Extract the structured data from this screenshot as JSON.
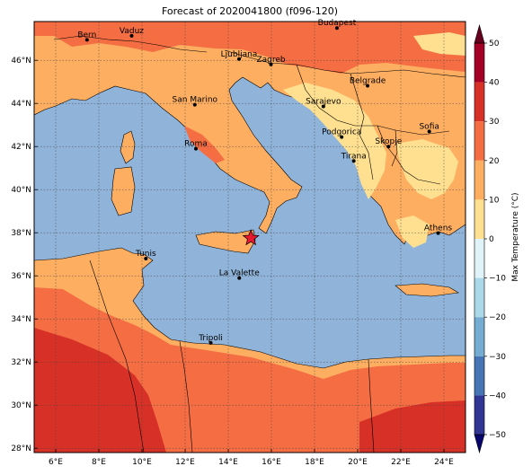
{
  "title": "Forecast of 2020041800 (f096-120)",
  "map": {
    "lon_range": [
      5,
      25
    ],
    "lat_range": [
      27.8,
      47.8
    ],
    "sea_color": "#8fb3d9",
    "land_color": "#fdae61",
    "warm_color": "#f46d43",
    "hot_color": "#d73027",
    "cool_color": "#fee090",
    "grid": true
  },
  "x_ticks": [
    {
      "lon": 6,
      "label": "6°E"
    },
    {
      "lon": 8,
      "label": "8°E"
    },
    {
      "lon": 10,
      "label": "10°E"
    },
    {
      "lon": 12,
      "label": "12°E"
    },
    {
      "lon": 14,
      "label": "14°E"
    },
    {
      "lon": 16,
      "label": "16°E"
    },
    {
      "lon": 18,
      "label": "18°E"
    },
    {
      "lon": 20,
      "label": "20°E"
    },
    {
      "lon": 22,
      "label": "22°E"
    },
    {
      "lon": 24,
      "label": "24°E"
    }
  ],
  "y_ticks": [
    {
      "lat": 28,
      "label": "28°N"
    },
    {
      "lat": 30,
      "label": "30°N"
    },
    {
      "lat": 32,
      "label": "32°N"
    },
    {
      "lat": 34,
      "label": "34°N"
    },
    {
      "lat": 36,
      "label": "36°N"
    },
    {
      "lat": 38,
      "label": "38°N"
    },
    {
      "lat": 40,
      "label": "40°N"
    },
    {
      "lat": 42,
      "label": "42°N"
    },
    {
      "lat": 44,
      "label": "44°N"
    },
    {
      "lat": 46,
      "label": "46°N"
    }
  ],
  "cities": [
    {
      "name": "Bern",
      "lon": 7.45,
      "lat": 46.95
    },
    {
      "name": "Vaduz",
      "lon": 9.52,
      "lat": 47.14
    },
    {
      "name": "Budapest",
      "lon": 19.04,
      "lat": 47.5
    },
    {
      "name": "Ljubljana",
      "lon": 14.5,
      "lat": 46.06
    },
    {
      "name": "Zagreb",
      "lon": 15.98,
      "lat": 45.81
    },
    {
      "name": "Belgrade",
      "lon": 20.46,
      "lat": 44.82
    },
    {
      "name": "San Marino",
      "lon": 12.45,
      "lat": 43.94
    },
    {
      "name": "Sarajevo",
      "lon": 18.41,
      "lat": 43.86
    },
    {
      "name": "Sofia",
      "lon": 23.32,
      "lat": 42.7
    },
    {
      "name": "Podgorica",
      "lon": 19.26,
      "lat": 42.44
    },
    {
      "name": "Skopje",
      "lon": 21.43,
      "lat": 42.0
    },
    {
      "name": "Roma",
      "lon": 12.5,
      "lat": 41.9
    },
    {
      "name": "Tirana",
      "lon": 19.82,
      "lat": 41.33
    },
    {
      "name": "Athens",
      "lon": 23.73,
      "lat": 37.98
    },
    {
      "name": "Tunis",
      "lon": 10.18,
      "lat": 36.8
    },
    {
      "name": "La Valette",
      "lon": 14.51,
      "lat": 35.9
    },
    {
      "name": "Tripoli",
      "lon": 13.19,
      "lat": 32.89
    }
  ],
  "marker": {
    "name": "star-marker",
    "lon": 15.05,
    "lat": 37.75,
    "color": "#e8192c"
  },
  "colorbar": {
    "label": "Max Temperature (°C)",
    "ticks": [
      50,
      40,
      30,
      20,
      10,
      0,
      -10,
      -20,
      -30,
      -40,
      -50
    ],
    "tick_labels": [
      "50",
      "40",
      "30",
      "20",
      "10",
      "0",
      "−10",
      "−20",
      "−30",
      "−40",
      "−50"
    ],
    "colors": [
      "#67001f",
      "#b2182b",
      "#d73027",
      "#f46d43",
      "#fdae61",
      "#fee090",
      "#e0f3f8",
      "#abd9e9",
      "#74add1",
      "#4575b4",
      "#313695"
    ],
    "top_extend": "#67001f",
    "bottom_extend": "#08066e"
  }
}
